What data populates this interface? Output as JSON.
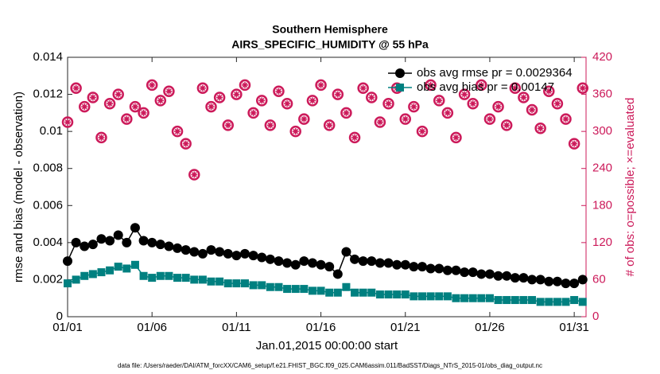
{
  "chart_data": {
    "type": "line",
    "title": "Southern Hemisphere",
    "subtitle": "AIRS_SPECIFIC_HUMIDITY @ 55 hPa",
    "xlabel": "Jan.01,2015 00:00:00 start",
    "ylabel": "rmse and bias (model - observation)",
    "y2label": "# of obs: o=possible; ×=evaluated",
    "footnote": "data file: /Users/raeder/DAI/ATM_forcXX/CAM6_setup/f.e21.FHIST_BGC.f09_025.CAM6assim.011/BadSST/Diags_NTrS_2015-01/obs_diag_output.nc",
    "legend": "northeast",
    "grid": false,
    "x": [
      0,
      0.5,
      1,
      1.5,
      2,
      2.5,
      3,
      3.5,
      4,
      4.5,
      5,
      5.5,
      6,
      6.5,
      7,
      7.5,
      8,
      8.5,
      9,
      9.5,
      10,
      10.5,
      11,
      11.5,
      12,
      12.5,
      13,
      13.5,
      14,
      14.5,
      15,
      15.5,
      16,
      16.5,
      17,
      17.5,
      18,
      18.5,
      19,
      19.5,
      20,
      20.5,
      21,
      21.5,
      22,
      22.5,
      23,
      23.5,
      24,
      24.5,
      25,
      25.5,
      26,
      26.5,
      27,
      27.5,
      28,
      28.5,
      29,
      29.5,
      30,
      30.5
    ],
    "xlim": [
      0,
      30.7
    ],
    "xticks": [
      {
        "value": 0,
        "label": "01/01"
      },
      {
        "value": 5,
        "label": "01/06"
      },
      {
        "value": 10,
        "label": "01/11"
      },
      {
        "value": 15,
        "label": "01/16"
      },
      {
        "value": 20,
        "label": "01/21"
      },
      {
        "value": 25,
        "label": "01/26"
      },
      {
        "value": 30,
        "label": "01/31"
      }
    ],
    "ylim": [
      0,
      0.014
    ],
    "yticks": [
      0,
      0.002,
      0.004,
      0.006,
      0.008,
      0.01,
      0.012,
      0.014
    ],
    "y2lim": [
      0,
      420
    ],
    "y2ticks": [
      0,
      60,
      120,
      180,
      240,
      300,
      360,
      420
    ],
    "series": [
      {
        "name": "obs avg rmse pr = 0.0029364",
        "color": "#000000",
        "marker": "circle",
        "line": true,
        "values": [
          0.003,
          0.004,
          0.0038,
          0.0039,
          0.0042,
          0.0041,
          0.0044,
          0.004,
          0.0048,
          0.0041,
          0.004,
          0.0039,
          0.0038,
          0.0037,
          0.0036,
          0.0035,
          0.0034,
          0.0036,
          0.0035,
          0.0034,
          0.0033,
          0.0034,
          0.0033,
          0.0032,
          0.0031,
          0.003,
          0.0029,
          0.0028,
          0.003,
          0.0029,
          0.0028,
          0.0027,
          0.0023,
          0.0035,
          0.0031,
          0.003,
          0.003,
          0.0029,
          0.0029,
          0.0028,
          0.0028,
          0.0027,
          0.0027,
          0.0026,
          0.0026,
          0.0025,
          0.0025,
          0.0024,
          0.0024,
          0.0023,
          0.0023,
          0.0022,
          0.0022,
          0.0021,
          0.0021,
          0.002,
          0.002,
          0.0019,
          0.0019,
          0.0018,
          0.0018,
          0.002
        ]
      },
      {
        "name": "obs avg bias pr = 0.00147",
        "color": "#008080",
        "marker": "square",
        "line": true,
        "values": [
          0.0018,
          0.002,
          0.0022,
          0.0023,
          0.0024,
          0.0025,
          0.0027,
          0.0026,
          0.0028,
          0.0022,
          0.0021,
          0.0022,
          0.0022,
          0.0021,
          0.0021,
          0.002,
          0.002,
          0.0019,
          0.0019,
          0.0018,
          0.0018,
          0.0018,
          0.0017,
          0.0017,
          0.0016,
          0.0016,
          0.0015,
          0.0015,
          0.0015,
          0.0014,
          0.0014,
          0.0013,
          0.0013,
          0.0016,
          0.0013,
          0.0013,
          0.0013,
          0.0012,
          0.0012,
          0.0012,
          0.0012,
          0.0011,
          0.0011,
          0.0011,
          0.0011,
          0.0011,
          0.001,
          0.001,
          0.001,
          0.001,
          0.001,
          0.0009,
          0.0009,
          0.0009,
          0.0009,
          0.0009,
          0.0008,
          0.0008,
          0.0008,
          0.0008,
          0.0009,
          0.0008
        ]
      },
      {
        "color": "#cc1a5a",
        "marker": "hollow-circle",
        "axis": "y2",
        "line": false,
        "values": [
          315,
          370,
          340,
          355,
          290,
          345,
          360,
          320,
          340,
          330,
          375,
          350,
          365,
          300,
          280,
          230,
          370,
          340,
          355,
          310,
          360,
          375,
          330,
          350,
          310,
          365,
          345,
          300,
          320,
          350,
          375,
          310,
          360,
          330,
          290,
          370,
          355,
          315,
          345,
          370,
          320,
          340,
          300,
          375,
          350,
          330,
          290,
          360,
          345,
          375,
          320,
          340,
          310,
          370,
          355,
          335,
          305,
          365,
          345,
          320,
          280,
          370
        ]
      },
      {
        "color": "#cc1a5a",
        "marker": "star",
        "axis": "y2",
        "line": false,
        "values": [
          315,
          370,
          340,
          355,
          290,
          345,
          360,
          320,
          340,
          330,
          375,
          350,
          365,
          300,
          280,
          230,
          370,
          340,
          355,
          310,
          360,
          375,
          330,
          350,
          310,
          365,
          345,
          300,
          320,
          350,
          375,
          310,
          360,
          330,
          290,
          370,
          355,
          315,
          345,
          370,
          320,
          340,
          300,
          375,
          350,
          330,
          290,
          360,
          345,
          375,
          320,
          340,
          310,
          370,
          355,
          335,
          305,
          365,
          345,
          320,
          280,
          370
        ]
      }
    ]
  }
}
